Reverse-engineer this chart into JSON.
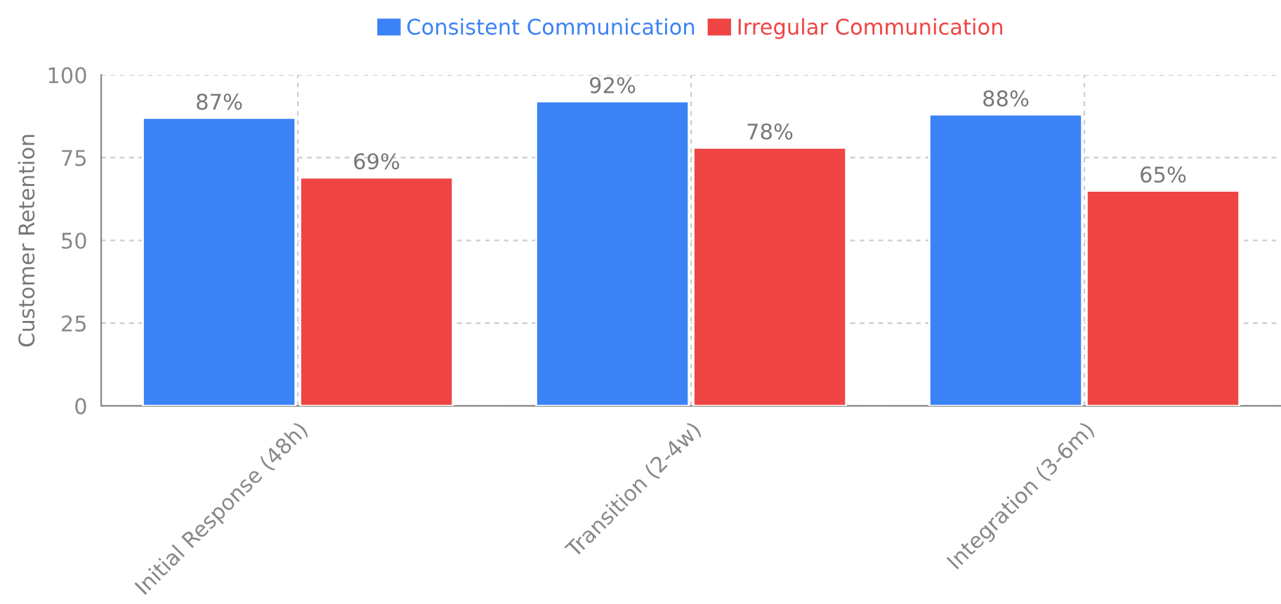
{
  "chart_data": {
    "type": "bar",
    "ylabel": "Customer Retention",
    "categories": [
      "Initial Response (48h)",
      "Transition (2-4w)",
      "Integration (3-6m)"
    ],
    "series": [
      {
        "name": "Consistent Communication",
        "color": "#3b82f6",
        "values": [
          87,
          92,
          88
        ],
        "value_labels": [
          "87%",
          "92%",
          "88%"
        ]
      },
      {
        "name": "Irregular Communication",
        "color": "#ef4444",
        "values": [
          69,
          78,
          65
        ],
        "value_labels": [
          "69%",
          "78%",
          "65%"
        ]
      }
    ],
    "ylim": [
      0,
      100
    ],
    "yticks": [
      0,
      25,
      50,
      75,
      100
    ],
    "grid": true,
    "legend": "top"
  }
}
